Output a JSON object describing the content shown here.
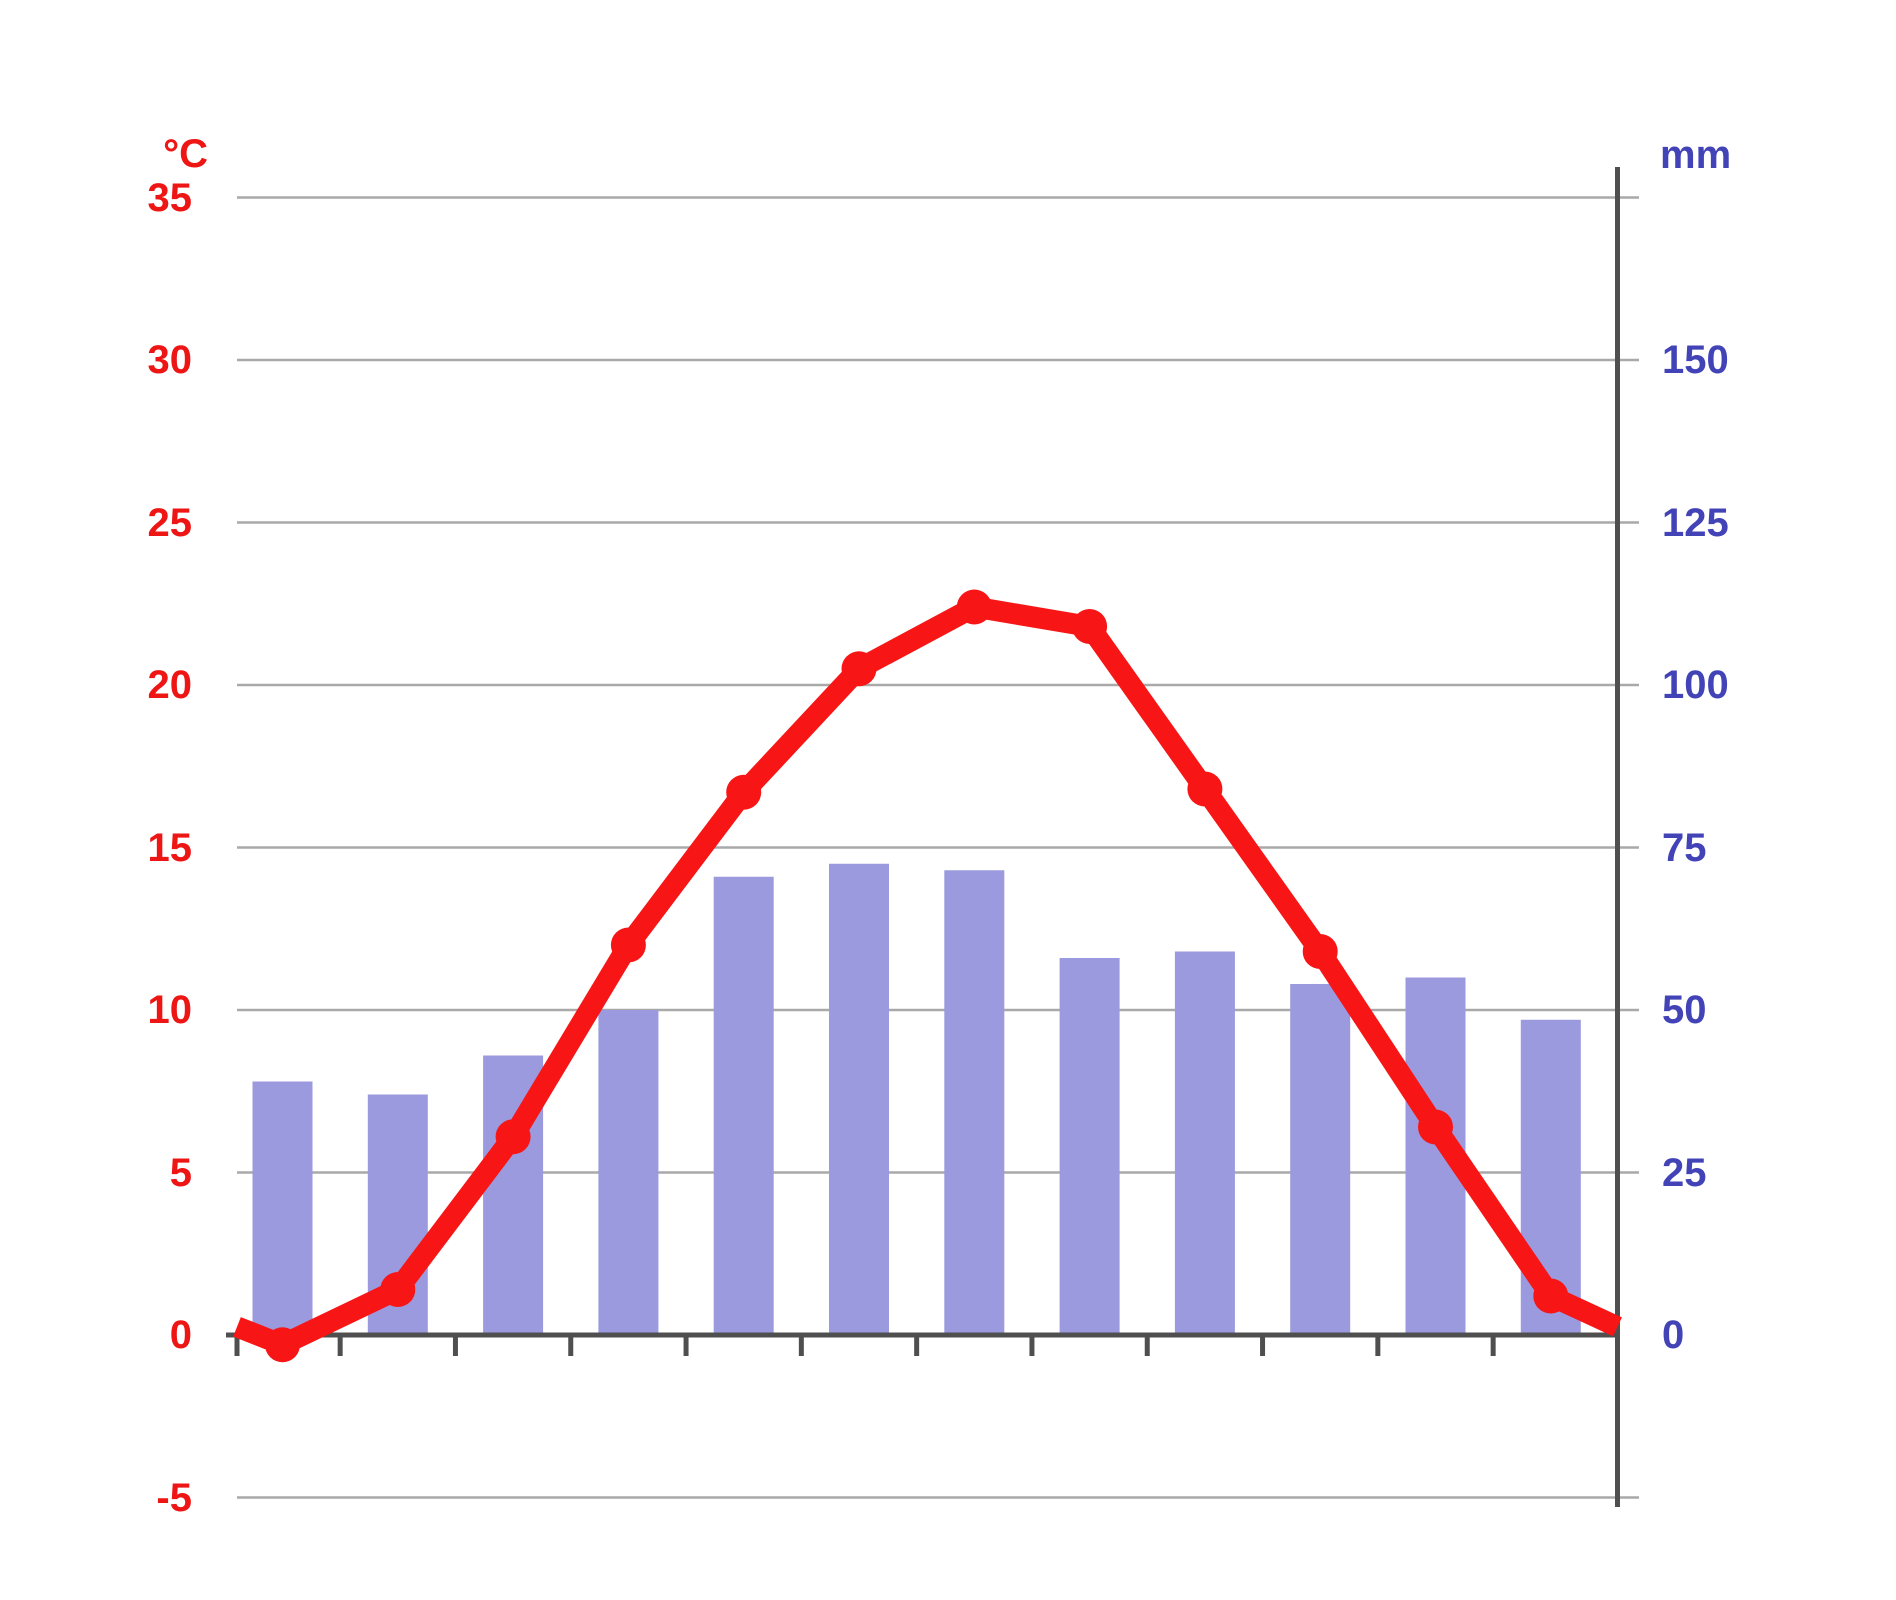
{
  "chart_data": {
    "type": "climograph (bar + line)",
    "title": "",
    "months_count": 12,
    "x_tick_labels": [],
    "left_axis": {
      "unit": "°C",
      "ticks": [
        35,
        30,
        25,
        20,
        15,
        10,
        5,
        0,
        -5
      ],
      "min": -7.5,
      "max": 36,
      "color": "#ee1515"
    },
    "right_axis": {
      "unit": "mm",
      "ticks": [
        150,
        125,
        100,
        75,
        50,
        25,
        0
      ],
      "min": 0,
      "max": 180,
      "color": "#4343b8"
    },
    "series": [
      {
        "name": "temperature",
        "type": "line",
        "unit": "°C",
        "color": "#f81515",
        "values": [
          -0.3,
          1.4,
          6.1,
          12,
          16.7,
          20.5,
          22.4,
          21.8,
          16.8,
          11.8,
          6.4,
          1.2
        ]
      },
      {
        "name": "precipitation",
        "type": "bar",
        "unit": "mm",
        "color": "#9b9ade",
        "values": [
          39,
          37,
          43,
          50,
          70.5,
          72.5,
          71.5,
          58,
          59,
          54,
          55,
          48.5
        ]
      }
    ],
    "line_edge_value_c": 0.25,
    "grid": true,
    "legend": false,
    "colors": {
      "grid": "#a9a9a9",
      "axis": "#4f4f4f",
      "background": "#ffffff"
    }
  }
}
